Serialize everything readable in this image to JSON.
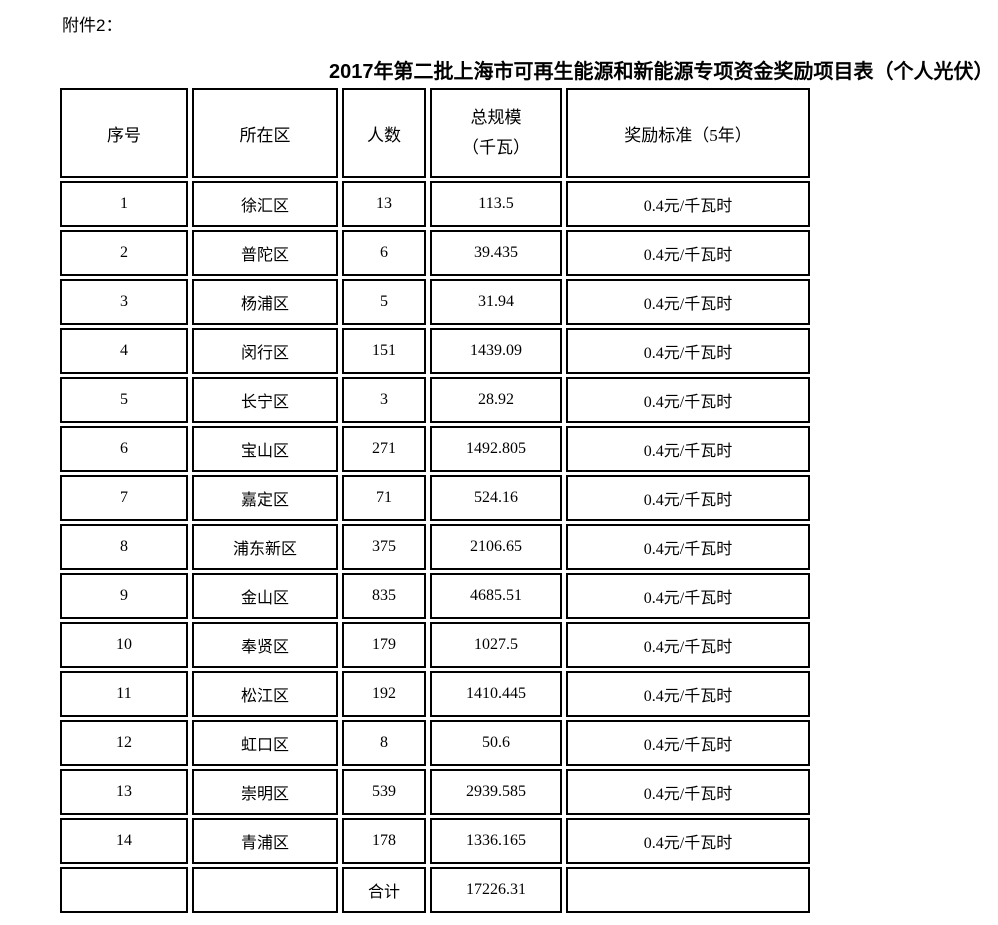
{
  "page": {
    "attachment_label": "附件2：",
    "title": "2017年第二批上海市可再生能源和新能源专项资金奖励项目表（个人光伏）"
  },
  "table": {
    "column_keys": [
      "no",
      "district",
      "count",
      "scale",
      "standard"
    ],
    "headers": {
      "no": "序号",
      "district": "所在区",
      "count": "人数",
      "scale_line1": "总规模",
      "scale_line2": "（千瓦）",
      "standard": "奖励标准（5年）"
    },
    "rows": [
      {
        "no": "1",
        "district": "徐汇区",
        "count": "13",
        "scale": "113.5",
        "standard": "0.4元/千瓦时"
      },
      {
        "no": "2",
        "district": "普陀区",
        "count": "6",
        "scale": "39.435",
        "standard": "0.4元/千瓦时"
      },
      {
        "no": "3",
        "district": "杨浦区",
        "count": "5",
        "scale": "31.94",
        "standard": "0.4元/千瓦时"
      },
      {
        "no": "4",
        "district": "闵行区",
        "count": "151",
        "scale": "1439.09",
        "standard": "0.4元/千瓦时"
      },
      {
        "no": "5",
        "district": "长宁区",
        "count": "3",
        "scale": "28.92",
        "standard": "0.4元/千瓦时"
      },
      {
        "no": "6",
        "district": "宝山区",
        "count": "271",
        "scale": "1492.805",
        "standard": "0.4元/千瓦时"
      },
      {
        "no": "7",
        "district": "嘉定区",
        "count": "71",
        "scale": "524.16",
        "standard": "0.4元/千瓦时"
      },
      {
        "no": "8",
        "district": "浦东新区",
        "count": "375",
        "scale": "2106.65",
        "standard": "0.4元/千瓦时"
      },
      {
        "no": "9",
        "district": "金山区",
        "count": "835",
        "scale": "4685.51",
        "standard": "0.4元/千瓦时"
      },
      {
        "no": "10",
        "district": "奉贤区",
        "count": "179",
        "scale": "1027.5",
        "standard": "0.4元/千瓦时"
      },
      {
        "no": "11",
        "district": "松江区",
        "count": "192",
        "scale": "1410.445",
        "standard": "0.4元/千瓦时"
      },
      {
        "no": "12",
        "district": "虹口区",
        "count": "8",
        "scale": "50.6",
        "standard": "0.4元/千瓦时"
      },
      {
        "no": "13",
        "district": "崇明区",
        "count": "539",
        "scale": "2939.585",
        "standard": "0.4元/千瓦时"
      },
      {
        "no": "14",
        "district": "青浦区",
        "count": "178",
        "scale": "1336.165",
        "standard": "0.4元/千瓦时"
      },
      {
        "no": "",
        "district": "",
        "count": "合计",
        "scale": "17226.31",
        "standard": ""
      }
    ]
  }
}
